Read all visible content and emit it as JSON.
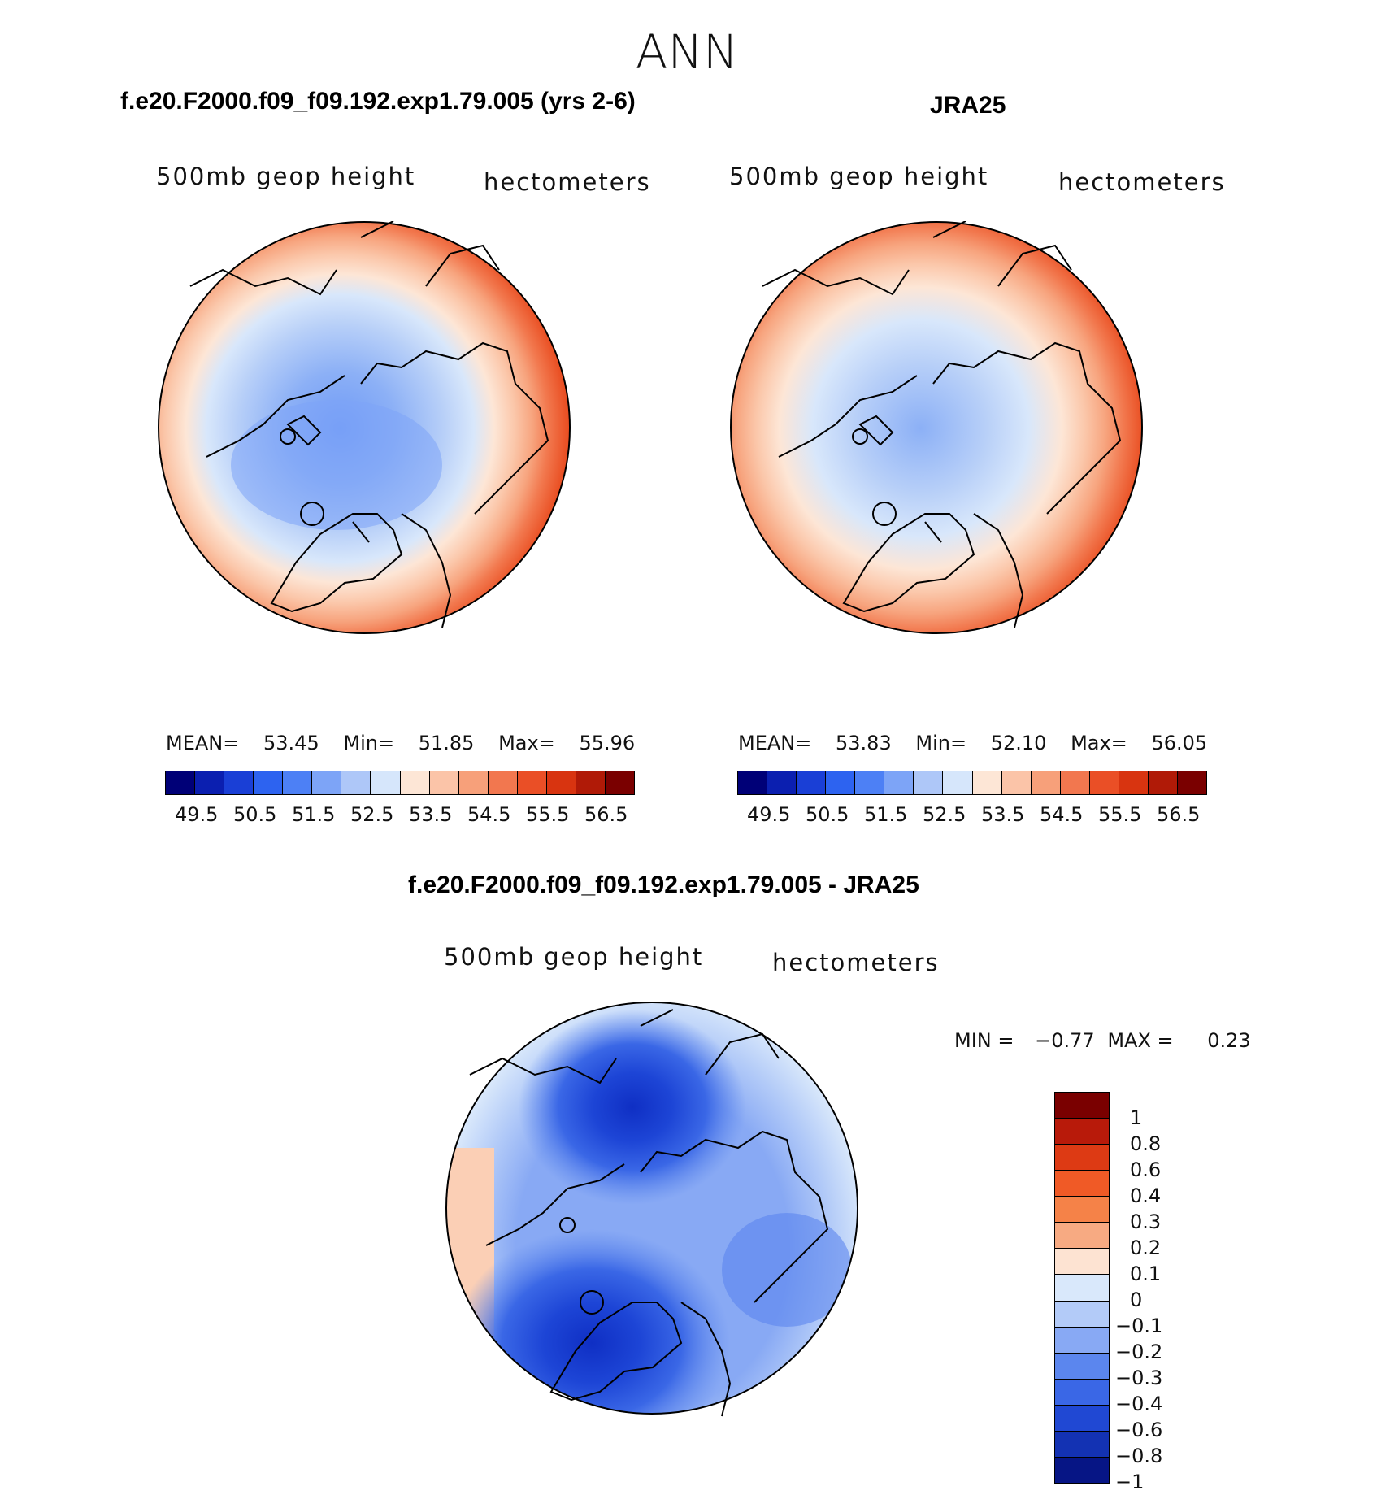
{
  "page_title": "ANN",
  "panels": [
    {
      "title": "f.e20.F2000.f09_f09.192.exp1.79.005 (yrs 2-6)",
      "variable": "500mb geop height",
      "units": "hectometers",
      "stats": {
        "mean_label": "MEAN=",
        "mean": "53.45",
        "min_label": "Min=",
        "min": "51.85",
        "max_label": "Max=",
        "max": "55.96"
      }
    },
    {
      "title": "JRA25",
      "variable": "500mb geop height",
      "units": "hectometers",
      "stats": {
        "mean_label": "MEAN=",
        "mean": "53.83",
        "min_label": "Min=",
        "min": "52.10",
        "max_label": "Max=",
        "max": "56.05"
      }
    },
    {
      "title": "f.e20.F2000.f09_f09.192.exp1.79.005 - JRA25",
      "variable": "500mb geop height",
      "units": "hectometers",
      "stats": {
        "min_label": "MIN =",
        "min": "−0.77",
        "max_label": "MAX =",
        "max": "0.23"
      }
    }
  ],
  "colorbar_horizontal": {
    "colors": [
      "#000077",
      "#0b1fb0",
      "#1a3fd6",
      "#2d63f0",
      "#4d80f5",
      "#7da4f7",
      "#aec7f8",
      "#d6e6fb",
      "#fde6d6",
      "#fbc4a8",
      "#f7a07a",
      "#f2774f",
      "#ea4f26",
      "#d83410",
      "#b01a07",
      "#7a0000"
    ],
    "tick_labels": [
      "49.5",
      "50.5",
      "51.5",
      "52.5",
      "53.5",
      "54.5",
      "55.5",
      "56.5"
    ]
  },
  "colorbar_vertical": {
    "colors": [
      "#7a0000",
      "#b81a0a",
      "#dd3a14",
      "#f05a26",
      "#f58248",
      "#f7aa82",
      "#fde3d2",
      "#d9e8fb",
      "#b3cbf8",
      "#88a9f4",
      "#5b86ee",
      "#3a67e6",
      "#2048d3",
      "#1332b3",
      "#061585"
    ],
    "tick_labels": [
      "1",
      "0.8",
      "0.6",
      "0.4",
      "0.3",
      "0.2",
      "0.1",
      "0",
      "−0.1",
      "−0.2",
      "−0.3",
      "−0.4",
      "−0.6",
      "−0.8",
      "−1"
    ]
  }
}
